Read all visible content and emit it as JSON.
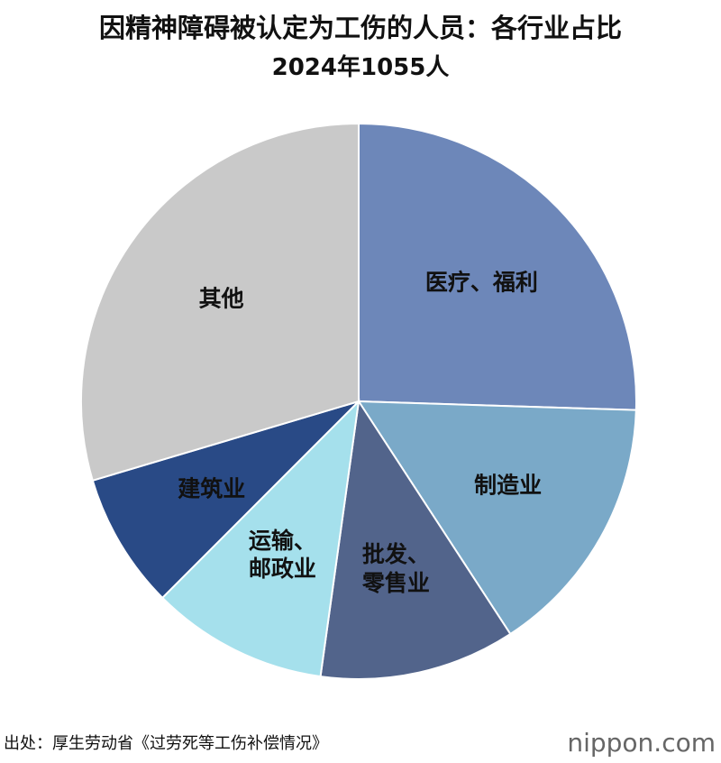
{
  "chart_data": {
    "type": "pie",
    "title": "因精神障碍被认定为工伤的人员：各行业占比",
    "subtitle": "2024年1055人",
    "categories": [
      "医疗、福利",
      "制造业",
      "批发、\n零售业",
      "运输、\n邮政业",
      "建筑业",
      "其他"
    ],
    "values": [
      25.5,
      15.3,
      11.4,
      10.3,
      7.9,
      29.6
    ],
    "colors": [
      "#6d87b9",
      "#7aa9c8",
      "#52648b",
      "#a5e0ec",
      "#294a86",
      "#c9c9c9"
    ],
    "source": "出处：厚生劳动省《过劳死等工伤补偿情况》",
    "logo": "nippon.com"
  }
}
